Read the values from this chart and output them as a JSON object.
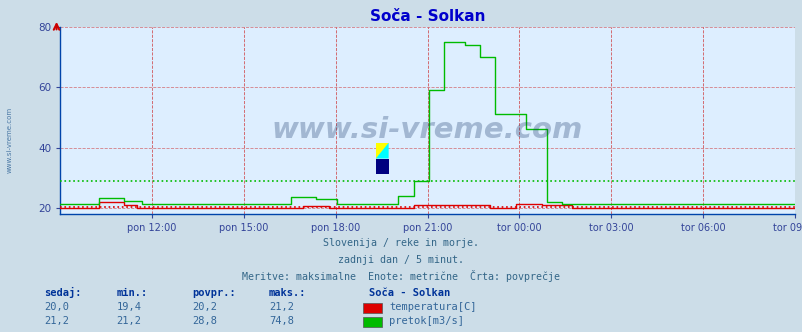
{
  "title": "Soča - Solkan",
  "background_color": "#ccdde8",
  "plot_background": "#ddeeff",
  "title_color": "#0000cc",
  "subtitle_lines": [
    "Slovenija / reke in morje.",
    "zadnji dan / 5 minut.",
    "Meritve: maksimalne  Enote: metrične  Črta: povprečje"
  ],
  "x_tick_labels": [
    "pon 12:00",
    "pon 15:00",
    "pon 18:00",
    "pon 21:00",
    "tor 00:00",
    "tor 03:00",
    "tor 06:00",
    "tor 09:00"
  ],
  "ylim": [
    18,
    80
  ],
  "yticks": [
    20,
    40,
    60,
    80
  ],
  "avg_temp": 20.2,
  "avg_flow": 28.8,
  "temp_color": "#dd0000",
  "flow_color": "#00bb00",
  "watermark": "www.si-vreme.com",
  "watermark_color": "#1a3a6a",
  "watermark_alpha": 0.3,
  "sidebar_text": "www.si-vreme.com",
  "sidebar_color": "#336699",
  "table_headers": [
    "sedaj:",
    "min.:",
    "povpr.:",
    "maks.:"
  ],
  "table_col1": [
    "20,0",
    "21,2"
  ],
  "table_col2": [
    "19,4",
    "21,2"
  ],
  "table_col3": [
    "20,2",
    "28,8"
  ],
  "table_col4": [
    "21,2",
    "74,8"
  ],
  "legend_title": "Soča - Solkan",
  "legend_items": [
    "temperatura[C]",
    "pretok[m3/s]"
  ],
  "legend_colors": [
    "#dd0000",
    "#00bb00"
  ],
  "n_points": 288
}
